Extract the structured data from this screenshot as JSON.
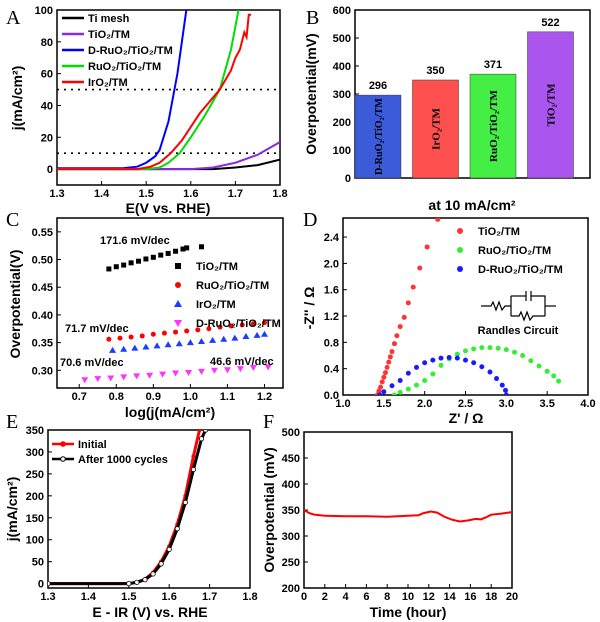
{
  "chart_data": [
    {
      "panel": "A",
      "type": "line",
      "xlabel": "E(V vs. RHE)",
      "ylabel": "j(mA/cm²)",
      "xlim": [
        1.3,
        1.8
      ],
      "ylim": [
        -10,
        100
      ],
      "xticks": [
        1.3,
        1.4,
        1.5,
        1.6,
        1.7,
        1.8
      ],
      "yticks": [
        0,
        20,
        40,
        60,
        80,
        100
      ],
      "reference_lines": [
        10,
        50
      ],
      "legend": "top-left",
      "series": [
        {
          "name": "Ti mesh",
          "color": "#000000",
          "x": [
            1.3,
            1.65,
            1.7,
            1.75,
            1.8
          ],
          "y": [
            0,
            0,
            1,
            2.5,
            6
          ]
        },
        {
          "name": "TiO₂/TM",
          "color": "#8a2be2",
          "x": [
            1.3,
            1.6,
            1.65,
            1.7,
            1.75,
            1.8
          ],
          "y": [
            0,
            0,
            1,
            4,
            9,
            17
          ]
        },
        {
          "name": "D-RuO₂/TiO₂/TM",
          "color": "#0000ff",
          "x": [
            1.3,
            1.45,
            1.48,
            1.5,
            1.52,
            1.53,
            1.55,
            1.57,
            1.59
          ],
          "y": [
            0.5,
            0.6,
            1.5,
            4,
            8,
            12,
            30,
            60,
            100
          ]
        },
        {
          "name": "RuO₂/TiO₂/TM",
          "color": "#00dd00",
          "x": [
            1.3,
            1.5,
            1.53,
            1.55,
            1.575,
            1.6,
            1.63,
            1.665,
            1.69,
            1.707
          ],
          "y": [
            0,
            0,
            1,
            4,
            10,
            20,
            33,
            50,
            75,
            100
          ]
        },
        {
          "name": "IrO₂/TM",
          "color": "#ff0000",
          "x": [
            1.3,
            1.48,
            1.51,
            1.53,
            1.555,
            1.58,
            1.62,
            1.665,
            1.69,
            1.7,
            1.71,
            1.72,
            1.725,
            1.73,
            1.735
          ],
          "y": [
            0,
            0,
            1.5,
            4,
            10,
            18,
            35,
            50,
            62,
            70,
            75,
            86,
            83,
            97,
            97
          ]
        }
      ]
    },
    {
      "panel": "B",
      "type": "bar",
      "xlabel": "at 10 mA/cm²",
      "ylabel": "Overpotential(mV)",
      "ylim": [
        0,
        600
      ],
      "yticks": [
        0,
        100,
        200,
        300,
        400,
        500,
        600
      ],
      "categories": [
        "D-RuO₂/TiO₂/TM",
        "IrO₂/TM",
        "RuO₂/TiO₂/TM",
        "TiO₂/TM"
      ],
      "values": [
        296,
        350,
        371,
        522
      ],
      "colors": [
        "#3b5bdb",
        "#ff5050",
        "#44ee44",
        "#aa55ee"
      ]
    },
    {
      "panel": "C",
      "type": "scatter",
      "xlabel": "log(j(mA/cm²)",
      "ylabel": "Overpotential(V)",
      "xlim": [
        0.64,
        1.25
      ],
      "ylim": [
        0.268,
        0.575
      ],
      "xticks": [
        0.7,
        0.8,
        0.9,
        1.0,
        1.1,
        1.2
      ],
      "yticks": [
        0.3,
        0.35,
        0.4,
        0.45,
        0.5,
        0.55
      ],
      "legend": "right",
      "series": [
        {
          "name": "TiO₂/TM",
          "color": "#000000",
          "marker": "square",
          "slope_label": "171.6 mV/dec",
          "x": [
            0.78,
            0.8,
            0.82,
            0.84,
            0.86,
            0.88,
            0.9,
            0.92,
            0.94,
            0.96,
            0.98,
            0.99,
            1.03
          ],
          "y": [
            0.483,
            0.487,
            0.49,
            0.494,
            0.497,
            0.501,
            0.504,
            0.508,
            0.511,
            0.515,
            0.519,
            0.521,
            0.523
          ]
        },
        {
          "name": "RuO₂/TiO₂/TM",
          "color": "#ff0000",
          "marker": "circle",
          "slope_label": "71.7 mV/dec",
          "x": [
            0.78,
            0.81,
            0.84,
            0.87,
            0.9,
            0.93,
            0.96,
            0.99,
            1.02,
            1.05,
            1.08,
            1.11,
            1.14,
            1.17,
            1.2
          ],
          "y": [
            0.356,
            0.358,
            0.36,
            0.362,
            0.365,
            0.367,
            0.369,
            0.371,
            0.373,
            0.375,
            0.378,
            0.38,
            0.382,
            0.384,
            0.386
          ]
        },
        {
          "name": "IrO₂/TM",
          "color": "#1a3cff",
          "marker": "triangle-up",
          "slope_label": "70.6 mV/dec",
          "x": [
            0.79,
            0.82,
            0.85,
            0.88,
            0.91,
            0.94,
            0.97,
            1.0,
            1.03,
            1.06,
            1.09,
            1.12,
            1.15,
            1.18,
            1.2
          ],
          "y": [
            0.336,
            0.338,
            0.34,
            0.342,
            0.344,
            0.346,
            0.348,
            0.35,
            0.352,
            0.354,
            0.356,
            0.358,
            0.361,
            0.363,
            0.365
          ]
        },
        {
          "name": "D-RuO₂/TiO₂/TM",
          "color": "#ff33ff",
          "marker": "triangle-down",
          "slope_label": "46.6 mV/dec",
          "x": [
            0.715,
            0.75,
            0.785,
            0.82,
            0.855,
            0.89,
            0.925,
            0.96,
            0.995,
            1.03,
            1.065,
            1.1,
            1.135,
            1.17,
            1.21
          ],
          "y": [
            0.283,
            0.285,
            0.286,
            0.288,
            0.29,
            0.291,
            0.293,
            0.295,
            0.296,
            0.298,
            0.3,
            0.301,
            0.303,
            0.305,
            0.306
          ]
        }
      ]
    },
    {
      "panel": "D",
      "type": "scatter",
      "xlabel": "Z' / Ω",
      "ylabel": "-Z'' / Ω",
      "xlim": [
        1.0,
        4.0
      ],
      "ylim": [
        0,
        2.69
      ],
      "xticks": [
        1.0,
        1.5,
        2.0,
        2.5,
        3.0,
        3.5,
        4.0
      ],
      "yticks": [
        0.0,
        0.4,
        0.8,
        1.2,
        1.6,
        2.0,
        2.4
      ],
      "legend": "top-right",
      "inset_label": "Randles Circuit",
      "series": [
        {
          "name": "TiO₂/TM",
          "color": "#ff3333",
          "x": [
            1.42,
            1.44,
            1.46,
            1.48,
            1.5,
            1.52,
            1.54,
            1.56,
            1.58,
            1.6,
            1.63,
            1.66,
            1.7,
            1.75,
            1.8,
            1.86,
            1.94,
            2.03,
            2.16
          ],
          "y": [
            0,
            0.06,
            0.12,
            0.2,
            0.27,
            0.34,
            0.42,
            0.5,
            0.58,
            0.66,
            0.78,
            0.9,
            1.04,
            1.18,
            1.4,
            1.64,
            1.93,
            2.25,
            2.67
          ]
        },
        {
          "name": "RuO₂/TiO₂/TM",
          "color": "#33ee33",
          "x": [
            1.63,
            1.7,
            1.8,
            1.9,
            2.0,
            2.1,
            2.2,
            2.3,
            2.4,
            2.5,
            2.6,
            2.7,
            2.8,
            2.9,
            3.0,
            3.1,
            3.2,
            3.3,
            3.4,
            3.5,
            3.58,
            3.64
          ],
          "y": [
            0,
            0.04,
            0.09,
            0.15,
            0.22,
            0.32,
            0.45,
            0.55,
            0.62,
            0.67,
            0.7,
            0.72,
            0.72,
            0.71,
            0.69,
            0.65,
            0.6,
            0.52,
            0.44,
            0.36,
            0.29,
            0.21
          ]
        },
        {
          "name": "D-RuO₂/TiO₂/TM",
          "color": "#1a1aff",
          "x": [
            1.45,
            1.5,
            1.6,
            1.7,
            1.8,
            1.9,
            2.0,
            2.1,
            2.2,
            2.3,
            2.4,
            2.5,
            2.6,
            2.7,
            2.8,
            2.88,
            2.95,
            2.99,
            3.0
          ],
          "y": [
            0,
            0.05,
            0.14,
            0.22,
            0.33,
            0.42,
            0.49,
            0.53,
            0.56,
            0.57,
            0.56,
            0.53,
            0.49,
            0.43,
            0.35,
            0.25,
            0.15,
            0.07,
            0
          ]
        }
      ]
    },
    {
      "panel": "E",
      "type": "line",
      "xlabel": "E - IR (V) vs. RHE",
      "ylabel": "j(mA/cm²)",
      "xlim": [
        1.3,
        1.8
      ],
      "ylim": [
        -10,
        350
      ],
      "xticks": [
        1.3,
        1.4,
        1.5,
        1.6,
        1.7,
        1.8
      ],
      "yticks": [
        0,
        50,
        100,
        150,
        200,
        250,
        300,
        350
      ],
      "legend": "top-left",
      "series": [
        {
          "name": "Initial",
          "color": "#ff0000",
          "marker": "filled-circle",
          "x": [
            1.3,
            1.5,
            1.52,
            1.54,
            1.56,
            1.58,
            1.6,
            1.62,
            1.64,
            1.66,
            1.675
          ],
          "y": [
            0,
            0,
            3,
            10,
            25,
            50,
            85,
            135,
            200,
            290,
            350
          ]
        },
        {
          "name": "After 1000 cycles",
          "color": "#000000",
          "marker": "open-circle",
          "x": [
            1.3,
            1.5,
            1.52,
            1.54,
            1.56,
            1.58,
            1.6,
            1.62,
            1.64,
            1.66,
            1.68,
            1.69
          ],
          "y": [
            0,
            0,
            3,
            9,
            22,
            45,
            78,
            125,
            185,
            260,
            330,
            350
          ]
        }
      ]
    },
    {
      "panel": "F",
      "type": "line",
      "xlabel": "Time (hour)",
      "ylabel": "Overpotential (mV)",
      "xlim": [
        0,
        20
      ],
      "ylim": [
        200,
        500
      ],
      "xticks": [
        0,
        2,
        4,
        6,
        8,
        10,
        12,
        14,
        16,
        18,
        20
      ],
      "yticks": [
        200,
        250,
        300,
        350,
        400,
        450,
        500
      ],
      "series": [
        {
          "color": "#ff0000",
          "x": [
            0,
            0.5,
            1,
            2,
            4,
            6,
            8,
            9,
            10,
            11,
            11.5,
            12.2,
            12.8,
            13.5,
            14.3,
            15,
            15.8,
            16.5,
            17,
            17.5,
            18,
            19,
            20
          ],
          "y": [
            350,
            344,
            341,
            339,
            338,
            338,
            337,
            338,
            339,
            340,
            344,
            347,
            345,
            337,
            331,
            328,
            330,
            333,
            332,
            336,
            341,
            343,
            346
          ]
        }
      ]
    }
  ]
}
